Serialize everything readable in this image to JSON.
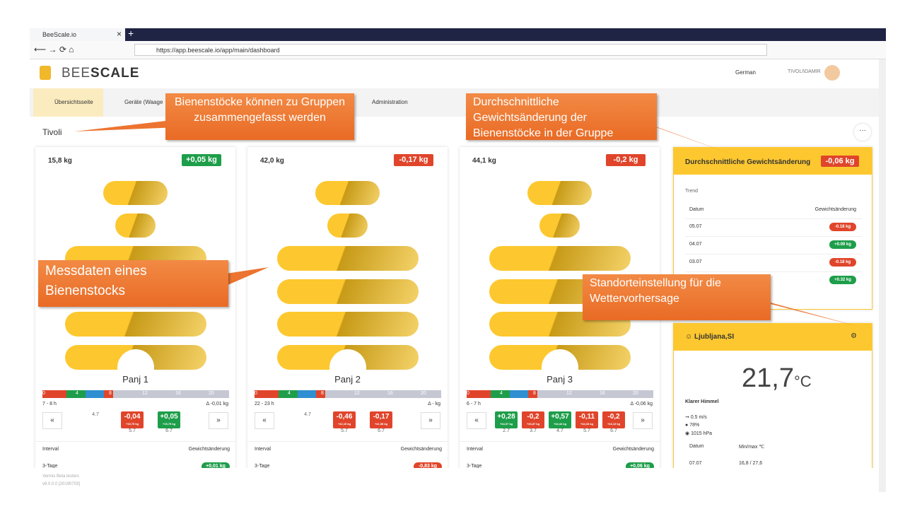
{
  "browser": {
    "tab": "BeeScale.io",
    "url": "https://app.beescale.io/app/main/dashboard"
  },
  "header": {
    "logo_a": "BEE",
    "logo_b": "SCALE",
    "language": "German",
    "user": "TIVOLI\\DAMIR"
  },
  "nav": [
    "Übersichtsseite",
    "Geräte (Waage",
    "Administration"
  ],
  "group": "Tivoli",
  "scale_labels": [
    "0",
    "4",
    "8",
    "12",
    "16",
    "20"
  ],
  "interval_headers": [
    "Interval",
    "Gewichtsänderung"
  ],
  "hives": [
    {
      "weight": "15,8 kg",
      "delta": "+0,05 kg",
      "delta_sign": "up",
      "name": "Panj 1",
      "time": "7 - 8 h",
      "hour_delta": "Δ -0,01 kg",
      "history": [
        {
          "day": "4.7"
        },
        {
          "delta": "-0,04",
          "total": "+15,75 kg",
          "day": "5.7",
          "sign": "down"
        },
        {
          "delta": "+0,05",
          "total": "+15,79 kg",
          "day": "6.7",
          "sign": "up"
        }
      ],
      "interval": "3-Tage",
      "interval_change": "+0,01 kg",
      "interval_sign": "up"
    },
    {
      "weight": "42,0 kg",
      "delta": "-0,17 kg",
      "delta_sign": "down",
      "name": "Panj 2",
      "time": "22 - 23 h",
      "hour_delta": "Δ - kg",
      "history": [
        {
          "day": "4.7"
        },
        {
          "delta": "-0,46",
          "total": "+42,15 kg",
          "day": "5.7",
          "sign": "down"
        },
        {
          "delta": "-0,17",
          "total": "+41,98 kg",
          "day": "6.7",
          "sign": "down"
        }
      ],
      "interval": "3-Tage",
      "interval_change": "-0,83 kg",
      "interval_sign": "down"
    },
    {
      "weight": "44,1 kg",
      "delta": "-0,2 kg",
      "delta_sign": "down",
      "name": "Panj 3",
      "time": "6 - 7 h",
      "hour_delta": "Δ -0,06 kg",
      "history": [
        {
          "delta": "+0,28",
          "total": "+44,07 kg",
          "day": "2.7",
          "sign": "up"
        },
        {
          "delta": "-0,2",
          "total": "+43,87 kg",
          "day": "3.7",
          "sign": "down"
        },
        {
          "delta": "+0,57",
          "total": "+44,44 kg",
          "day": "4.7",
          "sign": "up"
        },
        {
          "delta": "-0,11",
          "total": "+44,33 kg",
          "day": "5.7",
          "sign": "down"
        },
        {
          "delta": "-0,2",
          "total": "+44,13 kg",
          "day": "6.7",
          "sign": "down"
        }
      ],
      "interval": "3-Tage",
      "interval_change": "+0,06 kg",
      "interval_sign": "up"
    }
  ],
  "average": {
    "title": "Durchschnittliche Gewichtsänderung",
    "value": "-0,06 kg",
    "trend": "Trend",
    "headers": [
      "Datum",
      "Gewichtsänderung"
    ],
    "rows": [
      {
        "date": "05.07",
        "change": "-0.18 kg",
        "sign": "down"
      },
      {
        "date": "04.07",
        "change": "+0.09 kg",
        "sign": "up"
      },
      {
        "date": "03.07",
        "change": "-0.18 kg",
        "sign": "down"
      },
      {
        "change": "+0.32 kg",
        "sign": "up"
      }
    ]
  },
  "weather": {
    "location": "Ljubljana,SI",
    "temperature": "21,7",
    "unit": "°C",
    "condition": "Klarer Himmel",
    "wind": "0.5 m/s",
    "humidity": "78%",
    "pressure": "1015 hPa",
    "headers": [
      "Datum",
      "Min/max ℃"
    ],
    "rows": [
      [
        "07.07",
        "16,8 / 27,6"
      ]
    ]
  },
  "callouts": [
    "Bienenstöcke können zu Gruppen zusammengefasst werden",
    "Durchschnittliche Gewichtsänderung der Bienenstöcke in der Gruppe",
    "Messdaten eines Bienenstocks",
    "Standorteinstellung für die Wettervorhersage"
  ],
  "footer": [
    "Vermis Beta testers",
    "v6.0.0.0 [20190703]"
  ]
}
